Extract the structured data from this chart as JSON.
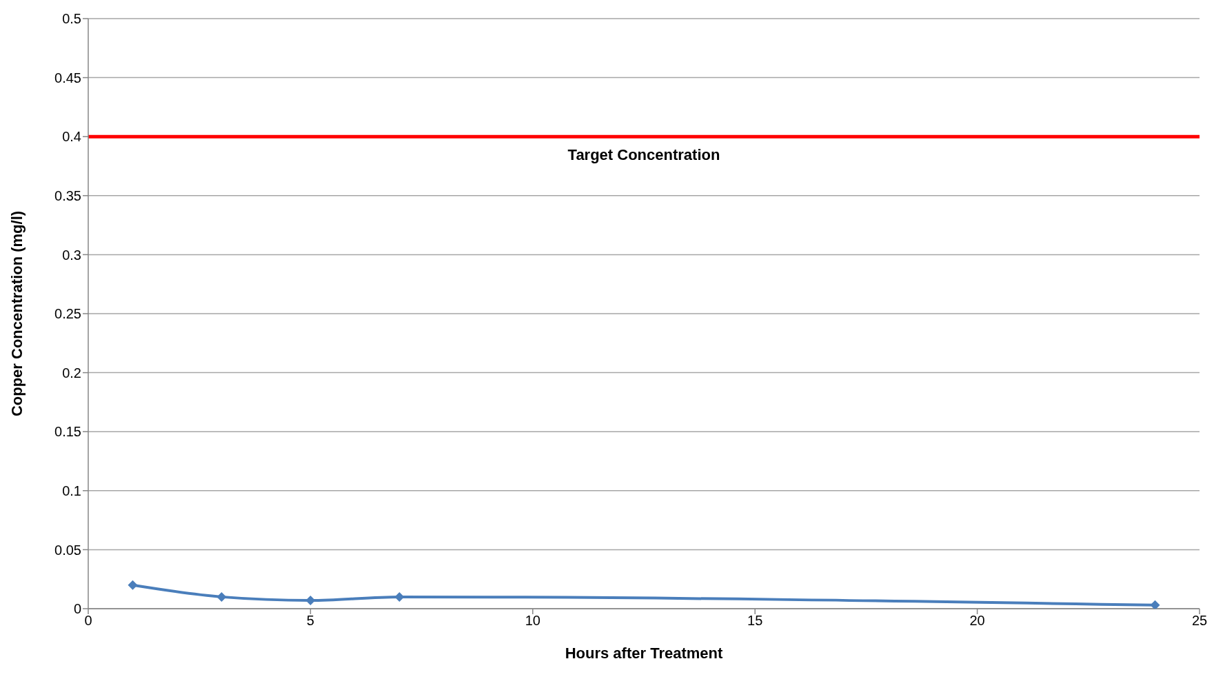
{
  "chart_data": {
    "type": "line",
    "xlabel": "Hours after Treatment",
    "ylabel": "Copper Concentration (mg/l)",
    "x": [
      1,
      3,
      5,
      7,
      24
    ],
    "series": [
      {
        "color": "#4a7ebb",
        "values": [
          0.02,
          0.01,
          0.007,
          0.01,
          0.003
        ]
      }
    ],
    "xlim": [
      0,
      25
    ],
    "xticks": [
      0,
      5,
      10,
      15,
      20,
      25
    ],
    "ylim": [
      0,
      0.5
    ],
    "yticks": [
      0,
      0.05,
      0.1,
      0.15,
      0.2,
      0.25,
      0.3,
      0.35,
      0.4,
      0.45,
      0.5
    ],
    "ref_lines": [
      {
        "axis": "y",
        "value": 0.4,
        "label": "Target Concentration",
        "color": "#ff0000"
      }
    ],
    "grid": "y",
    "marker": "diamond",
    "legend": false
  }
}
